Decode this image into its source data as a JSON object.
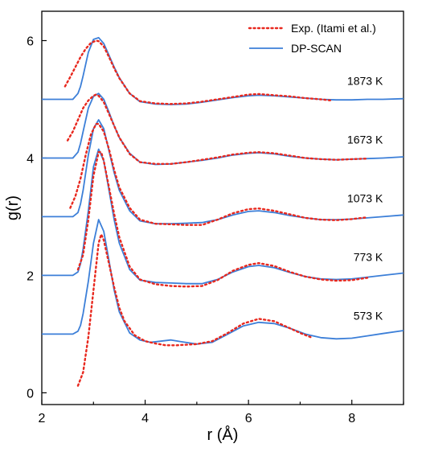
{
  "chart_data": {
    "type": "line",
    "xlabel": "r (Å)",
    "ylabel": "g(r)",
    "xlim": [
      2,
      9
    ],
    "ylim": [
      -0.2,
      6.5
    ],
    "x_ticks": [
      2,
      4,
      6,
      8
    ],
    "y_ticks": [
      0,
      2,
      4,
      6
    ],
    "legend": {
      "placement": "top-right",
      "entries": [
        {
          "label": "Exp. (Itami et al.)",
          "color": "#e8281e",
          "style": "dotted"
        },
        {
          "label": "DP-SCAN",
          "color": "#3c7fd8",
          "style": "solid"
        }
      ]
    },
    "curves": [
      {
        "temperature": "573 K",
        "offset": 0,
        "dp_scan": {
          "x": [
            2.0,
            2.6,
            2.7,
            2.75,
            2.8,
            2.9,
            3.0,
            3.1,
            3.2,
            3.3,
            3.4,
            3.5,
            3.7,
            3.9,
            4.1,
            4.3,
            4.5,
            4.7,
            5.0,
            5.3,
            5.6,
            5.9,
            6.2,
            6.5,
            6.8,
            7.1,
            7.4,
            7.7,
            8.0,
            8.3,
            8.6,
            9.0
          ],
          "y": [
            1.0,
            1.0,
            1.05,
            1.15,
            1.35,
            1.9,
            2.55,
            2.95,
            2.75,
            2.25,
            1.75,
            1.38,
            1.02,
            0.9,
            0.86,
            0.88,
            0.9,
            0.87,
            0.83,
            0.86,
            1.0,
            1.14,
            1.2,
            1.18,
            1.1,
            1.0,
            0.94,
            0.92,
            0.93,
            0.97,
            1.01,
            1.06
          ]
        },
        "experiment": {
          "x": [
            2.7,
            2.8,
            2.9,
            3.0,
            3.1,
            3.15,
            3.2,
            3.3,
            3.4,
            3.5,
            3.6,
            3.8,
            4.0,
            4.2,
            4.4,
            4.6,
            4.8,
            5.0,
            5.3,
            5.6,
            5.9,
            6.2,
            6.5,
            6.8,
            7.0,
            7.2
          ],
          "y": [
            0.12,
            0.35,
            0.95,
            1.75,
            2.55,
            2.7,
            2.6,
            2.2,
            1.8,
            1.45,
            1.22,
            0.98,
            0.88,
            0.84,
            0.81,
            0.81,
            0.82,
            0.83,
            0.88,
            1.02,
            1.18,
            1.26,
            1.22,
            1.1,
            1.02,
            0.95
          ]
        }
      },
      {
        "temperature": "773 K",
        "offset": 1,
        "dp_scan": {
          "x": [
            2.0,
            2.6,
            2.7,
            2.75,
            2.8,
            2.9,
            3.0,
            3.1,
            3.2,
            3.3,
            3.4,
            3.5,
            3.7,
            3.9,
            4.2,
            4.5,
            4.8,
            5.1,
            5.4,
            5.7,
            6.0,
            6.2,
            6.5,
            6.8,
            7.1,
            7.4,
            7.7,
            8.0,
            8.3,
            8.6,
            9.0
          ],
          "y": [
            1.0,
            1.0,
            1.06,
            1.2,
            1.45,
            2.1,
            2.85,
            3.15,
            2.95,
            2.45,
            1.95,
            1.55,
            1.1,
            0.92,
            0.88,
            0.87,
            0.86,
            0.86,
            0.93,
            1.06,
            1.15,
            1.17,
            1.13,
            1.05,
            0.98,
            0.94,
            0.93,
            0.94,
            0.97,
            1.0,
            1.04
          ]
        },
        "experiment": {
          "x": [
            2.7,
            2.8,
            2.9,
            3.0,
            3.1,
            3.15,
            3.2,
            3.3,
            3.4,
            3.5,
            3.7,
            3.9,
            4.2,
            4.5,
            4.8,
            5.1,
            5.4,
            5.7,
            6.0,
            6.2,
            6.5,
            6.8,
            7.1,
            7.4,
            7.7,
            8.0,
            8.3
          ],
          "y": [
            1.1,
            1.35,
            1.95,
            2.7,
            3.1,
            3.1,
            2.95,
            2.5,
            2.05,
            1.65,
            1.15,
            0.93,
            0.85,
            0.82,
            0.81,
            0.82,
            0.92,
            1.08,
            1.18,
            1.21,
            1.16,
            1.06,
            0.98,
            0.93,
            0.91,
            0.92,
            0.96
          ]
        }
      },
      {
        "temperature": "1073 K",
        "offset": 2,
        "dp_scan": {
          "x": [
            2.0,
            2.6,
            2.7,
            2.75,
            2.8,
            2.9,
            3.0,
            3.1,
            3.2,
            3.3,
            3.4,
            3.5,
            3.7,
            3.9,
            4.2,
            4.5,
            4.8,
            5.1,
            5.4,
            5.7,
            6.0,
            6.2,
            6.5,
            6.8,
            7.1,
            7.4,
            7.7,
            8.0,
            8.3,
            8.6,
            9.0
          ],
          "y": [
            1.0,
            1.0,
            1.07,
            1.22,
            1.45,
            2.05,
            2.5,
            2.65,
            2.5,
            2.12,
            1.75,
            1.45,
            1.1,
            0.93,
            0.88,
            0.88,
            0.89,
            0.9,
            0.95,
            1.03,
            1.09,
            1.1,
            1.07,
            1.02,
            0.98,
            0.95,
            0.95,
            0.96,
            0.98,
            1.0,
            1.03
          ]
        },
        "experiment": {
          "x": [
            2.55,
            2.65,
            2.75,
            2.85,
            2.95,
            3.05,
            3.1,
            3.2,
            3.3,
            3.4,
            3.5,
            3.7,
            3.9,
            4.2,
            4.5,
            4.8,
            5.1,
            5.4,
            5.7,
            6.0,
            6.2,
            6.5,
            6.8,
            7.1,
            7.4,
            7.7,
            8.0,
            8.3
          ],
          "y": [
            1.15,
            1.35,
            1.65,
            2.05,
            2.4,
            2.58,
            2.58,
            2.45,
            2.15,
            1.8,
            1.5,
            1.15,
            0.95,
            0.88,
            0.87,
            0.86,
            0.86,
            0.95,
            1.06,
            1.13,
            1.14,
            1.1,
            1.04,
            0.98,
            0.95,
            0.94,
            0.96,
            0.99
          ]
        }
      },
      {
        "temperature": "1673 K",
        "offset": 3,
        "dp_scan": {
          "x": [
            2.0,
            2.6,
            2.7,
            2.75,
            2.8,
            2.9,
            3.0,
            3.1,
            3.2,
            3.3,
            3.4,
            3.5,
            3.7,
            3.9,
            4.2,
            4.5,
            4.8,
            5.1,
            5.4,
            5.7,
            6.0,
            6.2,
            6.5,
            6.8,
            7.1,
            7.4,
            7.7,
            8.0,
            8.3,
            8.6,
            9.0
          ],
          "y": [
            1.0,
            1.0,
            1.1,
            1.25,
            1.45,
            1.85,
            2.05,
            2.1,
            2.0,
            1.78,
            1.55,
            1.35,
            1.08,
            0.93,
            0.89,
            0.9,
            0.93,
            0.96,
            1.0,
            1.05,
            1.08,
            1.09,
            1.07,
            1.03,
            1.0,
            0.98,
            0.97,
            0.98,
            0.99,
            1.0,
            1.02
          ]
        },
        "experiment": {
          "x": [
            2.5,
            2.6,
            2.7,
            2.8,
            2.9,
            3.0,
            3.05,
            3.1,
            3.2,
            3.3,
            3.4,
            3.5,
            3.7,
            3.9,
            4.2,
            4.5,
            4.8,
            5.1,
            5.4,
            5.7,
            6.0,
            6.2,
            6.5,
            6.8,
            7.1,
            7.4,
            7.7,
            8.0,
            8.3
          ],
          "y": [
            1.3,
            1.45,
            1.65,
            1.85,
            1.98,
            2.06,
            2.08,
            2.06,
            1.95,
            1.75,
            1.55,
            1.35,
            1.07,
            0.93,
            0.9,
            0.9,
            0.93,
            0.97,
            1.01,
            1.06,
            1.09,
            1.1,
            1.08,
            1.04,
            1.0,
            0.98,
            0.97,
            0.98,
            0.99
          ]
        }
      },
      {
        "temperature": "1873 K",
        "offset": 4,
        "dp_scan": {
          "x": [
            2.0,
            2.6,
            2.7,
            2.75,
            2.8,
            2.9,
            3.0,
            3.1,
            3.2,
            3.3,
            3.4,
            3.5,
            3.7,
            3.9,
            4.2,
            4.5,
            4.8,
            5.1,
            5.4,
            5.7,
            6.0,
            6.2,
            6.5,
            6.8,
            7.1,
            7.4,
            7.7,
            8.0,
            8.3,
            8.6,
            9.0
          ],
          "y": [
            1.0,
            1.0,
            1.1,
            1.22,
            1.4,
            1.8,
            2.02,
            2.05,
            1.95,
            1.75,
            1.55,
            1.37,
            1.1,
            0.96,
            0.92,
            0.91,
            0.92,
            0.95,
            0.99,
            1.03,
            1.06,
            1.07,
            1.06,
            1.04,
            1.02,
            1.0,
            0.99,
            0.99,
            1.0,
            1.0,
            1.01
          ]
        },
        "experiment": {
          "x": [
            2.45,
            2.55,
            2.65,
            2.75,
            2.85,
            2.95,
            3.05,
            3.1,
            3.2,
            3.3,
            3.4,
            3.5,
            3.7,
            3.9,
            4.2,
            4.5,
            4.8,
            5.1,
            5.4,
            5.7,
            6.0,
            6.2,
            6.5,
            6.8,
            7.1,
            7.4,
            7.6
          ],
          "y": [
            1.22,
            1.38,
            1.55,
            1.72,
            1.86,
            1.96,
            2.0,
            1.99,
            1.9,
            1.72,
            1.53,
            1.36,
            1.1,
            0.97,
            0.93,
            0.92,
            0.93,
            0.96,
            1.0,
            1.04,
            1.08,
            1.09,
            1.07,
            1.05,
            1.02,
            1.0,
            0.98
          ]
        }
      }
    ]
  }
}
